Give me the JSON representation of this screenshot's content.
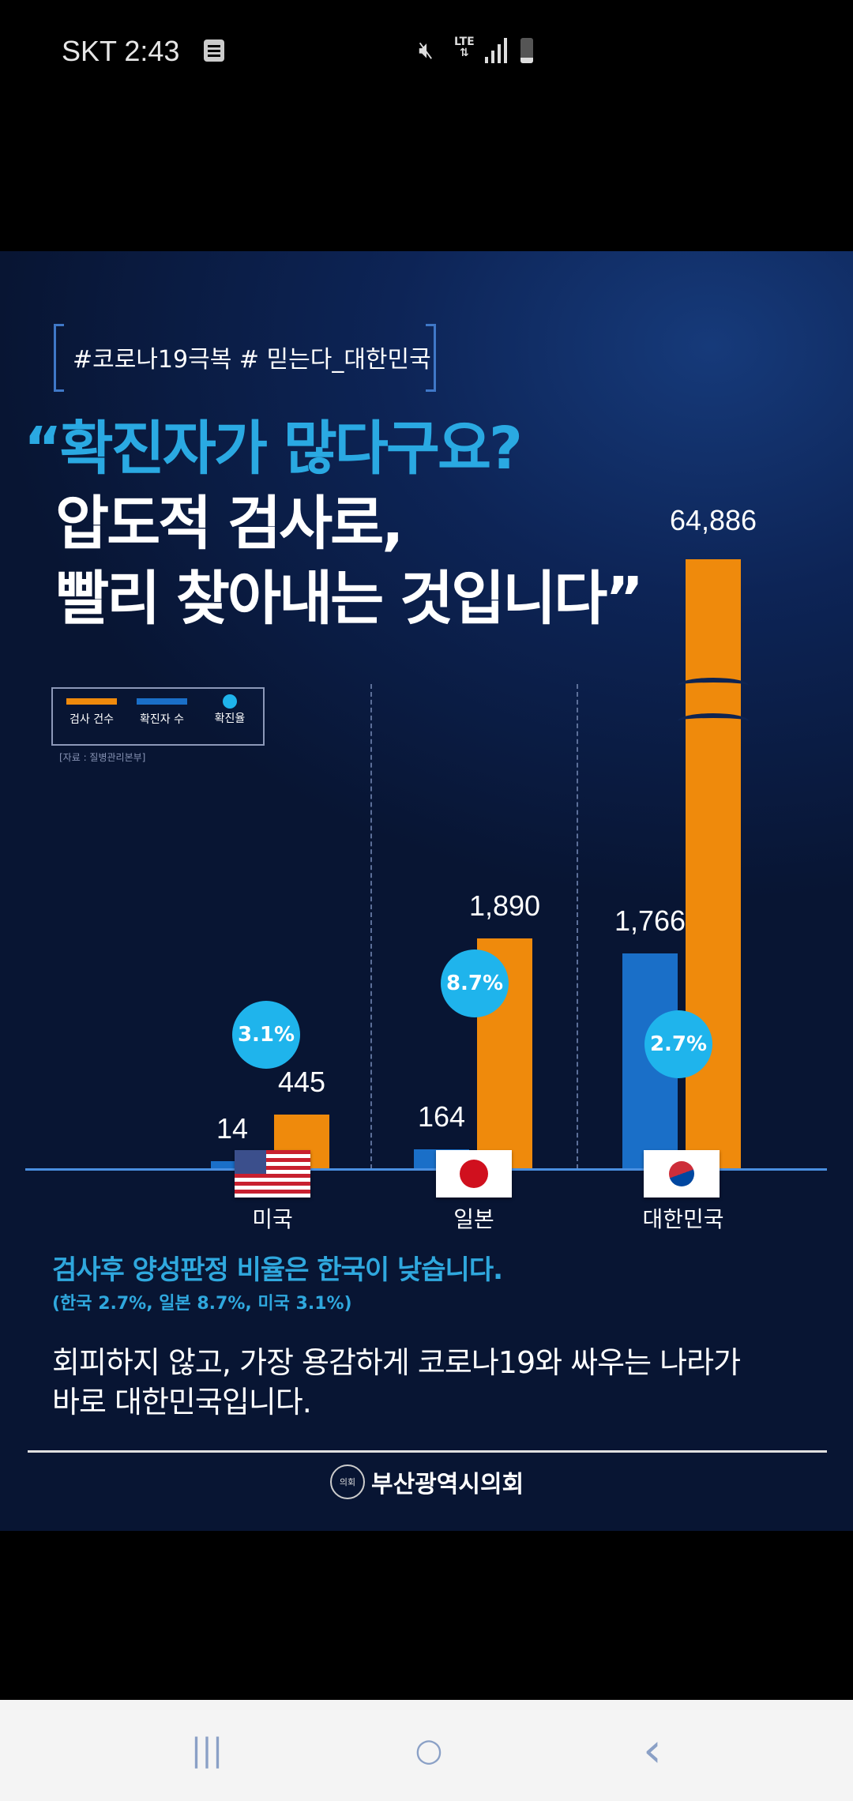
{
  "status_bar": {
    "carrier_time": "SKT 2:43",
    "network": "LTE"
  },
  "poster": {
    "hashtags": "#코로나19극복 # 믿는다_대한민국",
    "headline": [
      "“확진자가 많다구요?",
      "압도적 검사로,",
      "빨리 찾아내는 것입니다”"
    ],
    "source": "[자료 : 질병관리본부]",
    "subtitle": "검사후 양성판정 비율은 한국이 낮습니다.",
    "subtitle_detail": "(한국 2.7%, 일본 8.7%, 미국 3.1%)",
    "body": [
      "회피하지 않고, 가장 용감하게 코로나19와 싸우는 나라가",
      "바로 대한민국입니다."
    ],
    "publisher": "부산광역시의회",
    "emblem_text": "의회"
  },
  "chart_data": {
    "type": "bar",
    "categories": [
      "미국",
      "일본",
      "대한민국"
    ],
    "series": [
      {
        "name": "확진자 수",
        "values": [
          14,
          164,
          1766
        ],
        "labels": [
          "14",
          "164",
          "1,766"
        ],
        "color": "#1a6fc8"
      },
      {
        "name": "검사 건수",
        "values": [
          445,
          1890,
          64886
        ],
        "labels": [
          "445",
          "1,890",
          "64,886"
        ],
        "color": "#ef8a0c"
      },
      {
        "name": "확진율",
        "values": [
          3.1,
          8.7,
          2.7
        ],
        "labels": [
          "3.1%",
          "8.7%",
          "2.7%"
        ],
        "unit": "%",
        "color": "#1fb4ec"
      }
    ],
    "legend": [
      "검사 건수",
      "확진자 수",
      "확진율"
    ],
    "legend_position": "top-left",
    "axis_break": "대한민국 검사 건수",
    "grid": false
  },
  "nav": {
    "recents": "|||",
    "home": "○",
    "back": "‹"
  }
}
